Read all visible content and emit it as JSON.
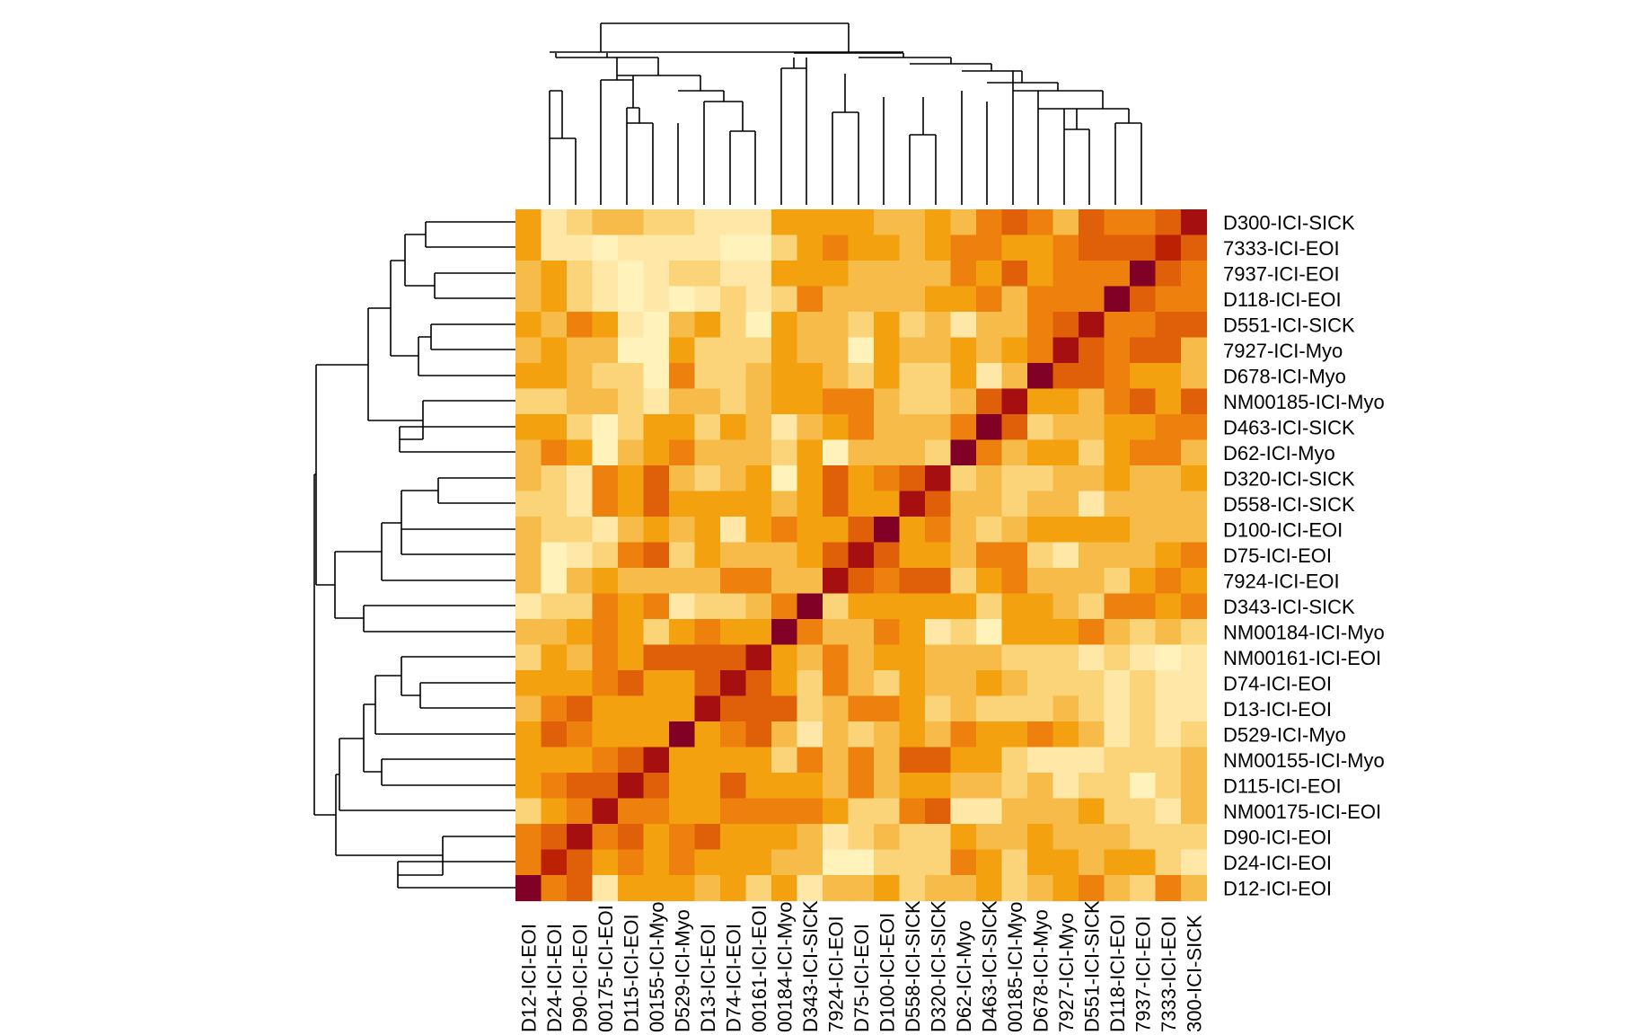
{
  "chart_data": {
    "type": "heatmap",
    "title": "",
    "xlabel": "",
    "ylabel": "",
    "row_order_top_to_bottom": [
      "D300-ICI-SICK",
      "7333-ICI-EOI",
      "7937-ICI-EOI",
      "D118-ICI-EOI",
      "D551-ICI-SICK",
      "7927-ICI-Myo",
      "D678-ICI-Myo",
      "NM00185-ICI-Myo",
      "D463-ICI-SICK",
      "D62-ICI-Myo",
      "D320-ICI-SICK",
      "D558-ICI-SICK",
      "D100-ICI-EOI",
      "D75-ICI-EOI",
      "7924-ICI-EOI",
      "D343-ICI-SICK",
      "NM00184-ICI-Myo",
      "NM00161-ICI-EOI",
      "D74-ICI-EOI",
      "D13-ICI-EOI",
      "D529-ICI-Myo",
      "NM00155-ICI-Myo",
      "D115-ICI-EOI",
      "NM00175-ICI-EOI",
      "D90-ICI-EOI",
      "D24-ICI-EOI",
      "D12-ICI-EOI"
    ],
    "column_labels_left_to_right": [
      "D12-ICI-EOI",
      "D24-ICI-EOI",
      "D90-ICI-EOI",
      "00175-ICI-EOI",
      "D115-ICI-EOI",
      "00155-ICI-Myo",
      "D529-ICI-Myo",
      "D13-ICI-EOI",
      "D74-ICI-EOI",
      "00161-ICI-EOI",
      "00184-ICI-Myo",
      "D343-ICI-SICK",
      "7924-ICI-EOI",
      "D75-ICI-EOI",
      "D100-ICI-EOI",
      "D558-ICI-SICK",
      "D320-ICI-SICK",
      "D62-ICI-Myo",
      "D463-ICI-SICK",
      "00185-ICI-Myo",
      "D678-ICI-Myo",
      "7927-ICI-Myo",
      "D551-ICI-SICK",
      "D118-ICI-EOI",
      "7937-ICI-EOI",
      "7333-ICI-EOI",
      "300-ICI-SICK"
    ],
    "palette_low_to_high": [
      "#FFFFCC",
      "#FFF2BB",
      "#FFE7A8",
      "#FBD479",
      "#F6BB48",
      "#F4A110",
      "#EE810E",
      "#E0600A",
      "#BC2104",
      "#A50F0F",
      "#800026"
    ],
    "value_scale": [
      0,
      10
    ],
    "cells_levels": [
      [
        5,
        2,
        3,
        4,
        4,
        3,
        3,
        2,
        2,
        2,
        5,
        5,
        5,
        5,
        4,
        4,
        5,
        4,
        6,
        7,
        6,
        4,
        7,
        6,
        6,
        7,
        9
      ],
      [
        5,
        2,
        2,
        1,
        2,
        2,
        2,
        2,
        1,
        1,
        3,
        5,
        6,
        5,
        5,
        4,
        5,
        6,
        6,
        5,
        5,
        6,
        7,
        7,
        7,
        8,
        7
      ],
      [
        4,
        5,
        3,
        2,
        1,
        2,
        3,
        3,
        2,
        2,
        5,
        5,
        5,
        4,
        4,
        4,
        4,
        6,
        5,
        7,
        5,
        6,
        6,
        6,
        10,
        7,
        6
      ],
      [
        4,
        5,
        3,
        2,
        1,
        2,
        1,
        2,
        3,
        2,
        3,
        6,
        4,
        4,
        4,
        4,
        5,
        5,
        6,
        4,
        6,
        6,
        6,
        10,
        7,
        6,
        6
      ],
      [
        5,
        4,
        6,
        5,
        2,
        1,
        4,
        5,
        3,
        1,
        5,
        4,
        4,
        3,
        5,
        3,
        4,
        2,
        4,
        4,
        6,
        7,
        9,
        6,
        6,
        7,
        7
      ],
      [
        4,
        5,
        4,
        4,
        1,
        1,
        5,
        3,
        3,
        3,
        5,
        4,
        4,
        1,
        5,
        4,
        4,
        5,
        4,
        5,
        6,
        9,
        7,
        6,
        7,
        7,
        4
      ],
      [
        5,
        5,
        4,
        3,
        3,
        1,
        6,
        3,
        3,
        4,
        5,
        5,
        4,
        3,
        5,
        3,
        3,
        5,
        2,
        4,
        10,
        7,
        7,
        6,
        5,
        5,
        4
      ],
      [
        3,
        3,
        4,
        4,
        3,
        2,
        4,
        4,
        3,
        4,
        5,
        5,
        6,
        6,
        4,
        3,
        3,
        4,
        7,
        9,
        5,
        5,
        4,
        6,
        7,
        5,
        7
      ],
      [
        5,
        5,
        3,
        1,
        3,
        5,
        5,
        3,
        5,
        4,
        2,
        4,
        5,
        6,
        4,
        4,
        4,
        6,
        10,
        7,
        3,
        4,
        4,
        5,
        5,
        6,
        6
      ],
      [
        4,
        6,
        5,
        1,
        4,
        5,
        6,
        4,
        4,
        4,
        3,
        5,
        1,
        4,
        4,
        4,
        3,
        10,
        6,
        4,
        5,
        5,
        3,
        5,
        6,
        6,
        4
      ],
      [
        4,
        3,
        2,
        6,
        5,
        7,
        4,
        3,
        4,
        5,
        1,
        5,
        7,
        5,
        6,
        7,
        9,
        3,
        4,
        3,
        3,
        4,
        4,
        5,
        4,
        4,
        5
      ],
      [
        3,
        3,
        2,
        6,
        5,
        7,
        5,
        5,
        5,
        5,
        4,
        5,
        7,
        5,
        5,
        9,
        7,
        4,
        4,
        3,
        4,
        4,
        2,
        4,
        4,
        4,
        4
      ],
      [
        4,
        3,
        3,
        2,
        4,
        5,
        4,
        5,
        2,
        5,
        6,
        5,
        5,
        7,
        10,
        5,
        6,
        4,
        3,
        4,
        5,
        5,
        5,
        5,
        4,
        4,
        4
      ],
      [
        4,
        1,
        2,
        3,
        6,
        7,
        3,
        5,
        4,
        4,
        4,
        5,
        7,
        9,
        7,
        5,
        5,
        4,
        6,
        6,
        3,
        2,
        4,
        4,
        4,
        5,
        6
      ],
      [
        4,
        1,
        4,
        5,
        4,
        4,
        4,
        4,
        6,
        6,
        4,
        4,
        9,
        7,
        6,
        7,
        7,
        3,
        5,
        6,
        4,
        4,
        4,
        3,
        5,
        6,
        5
      ],
      [
        2,
        3,
        3,
        6,
        5,
        6,
        2,
        3,
        3,
        4,
        6,
        10,
        3,
        5,
        5,
        5,
        5,
        5,
        3,
        5,
        5,
        4,
        3,
        6,
        6,
        5,
        6
      ],
      [
        4,
        4,
        5,
        6,
        5,
        3,
        5,
        6,
        5,
        5,
        10,
        6,
        4,
        4,
        6,
        5,
        2,
        3,
        1,
        5,
        5,
        5,
        6,
        4,
        3,
        4,
        3
      ],
      [
        3,
        5,
        4,
        6,
        5,
        7,
        7,
        7,
        7,
        9,
        5,
        4,
        6,
        4,
        5,
        5,
        4,
        4,
        4,
        3,
        3,
        3,
        2,
        3,
        2,
        1,
        2
      ],
      [
        5,
        5,
        5,
        6,
        7,
        5,
        5,
        7,
        9,
        7,
        5,
        3,
        6,
        4,
        3,
        5,
        4,
        4,
        5,
        4,
        3,
        3,
        3,
        2,
        3,
        2,
        2
      ],
      [
        4,
        6,
        7,
        5,
        5,
        5,
        5,
        9,
        7,
        7,
        7,
        3,
        4,
        6,
        6,
        5,
        3,
        4,
        3,
        3,
        3,
        4,
        3,
        2,
        3,
        2,
        2
      ],
      [
        5,
        7,
        6,
        5,
        5,
        5,
        10,
        5,
        6,
        7,
        4,
        2,
        4,
        3,
        4,
        5,
        4,
        6,
        5,
        5,
        6,
        5,
        4,
        2,
        3,
        2,
        3
      ],
      [
        5,
        5,
        5,
        6,
        7,
        9,
        5,
        5,
        5,
        5,
        3,
        6,
        4,
        6,
        4,
        7,
        7,
        5,
        5,
        3,
        2,
        2,
        2,
        3,
        3,
        3,
        4
      ],
      [
        5,
        6,
        7,
        7,
        9,
        7,
        5,
        5,
        7,
        5,
        5,
        5,
        4,
        6,
        4,
        5,
        5,
        4,
        4,
        3,
        4,
        2,
        3,
        3,
        1,
        3,
        4
      ],
      [
        3,
        5,
        6,
        9,
        6,
        6,
        5,
        5,
        6,
        6,
        6,
        6,
        5,
        3,
        3,
        6,
        7,
        2,
        2,
        4,
        4,
        4,
        5,
        3,
        3,
        2,
        4
      ],
      [
        6,
        7,
        9,
        6,
        7,
        5,
        6,
        7,
        5,
        5,
        5,
        4,
        2,
        3,
        4,
        3,
        3,
        5,
        4,
        4,
        5,
        4,
        4,
        4,
        3,
        3,
        3
      ],
      [
        6,
        8,
        7,
        5,
        6,
        5,
        6,
        5,
        5,
        5,
        4,
        4,
        1,
        1,
        3,
        3,
        3,
        6,
        5,
        3,
        5,
        5,
        4,
        5,
        5,
        3,
        2
      ],
      [
        10,
        6,
        7,
        2,
        5,
        5,
        5,
        4,
        5,
        3,
        5,
        2,
        4,
        4,
        5,
        3,
        4,
        4,
        5,
        3,
        4,
        5,
        6,
        4,
        3,
        6,
        4
      ]
    ]
  }
}
